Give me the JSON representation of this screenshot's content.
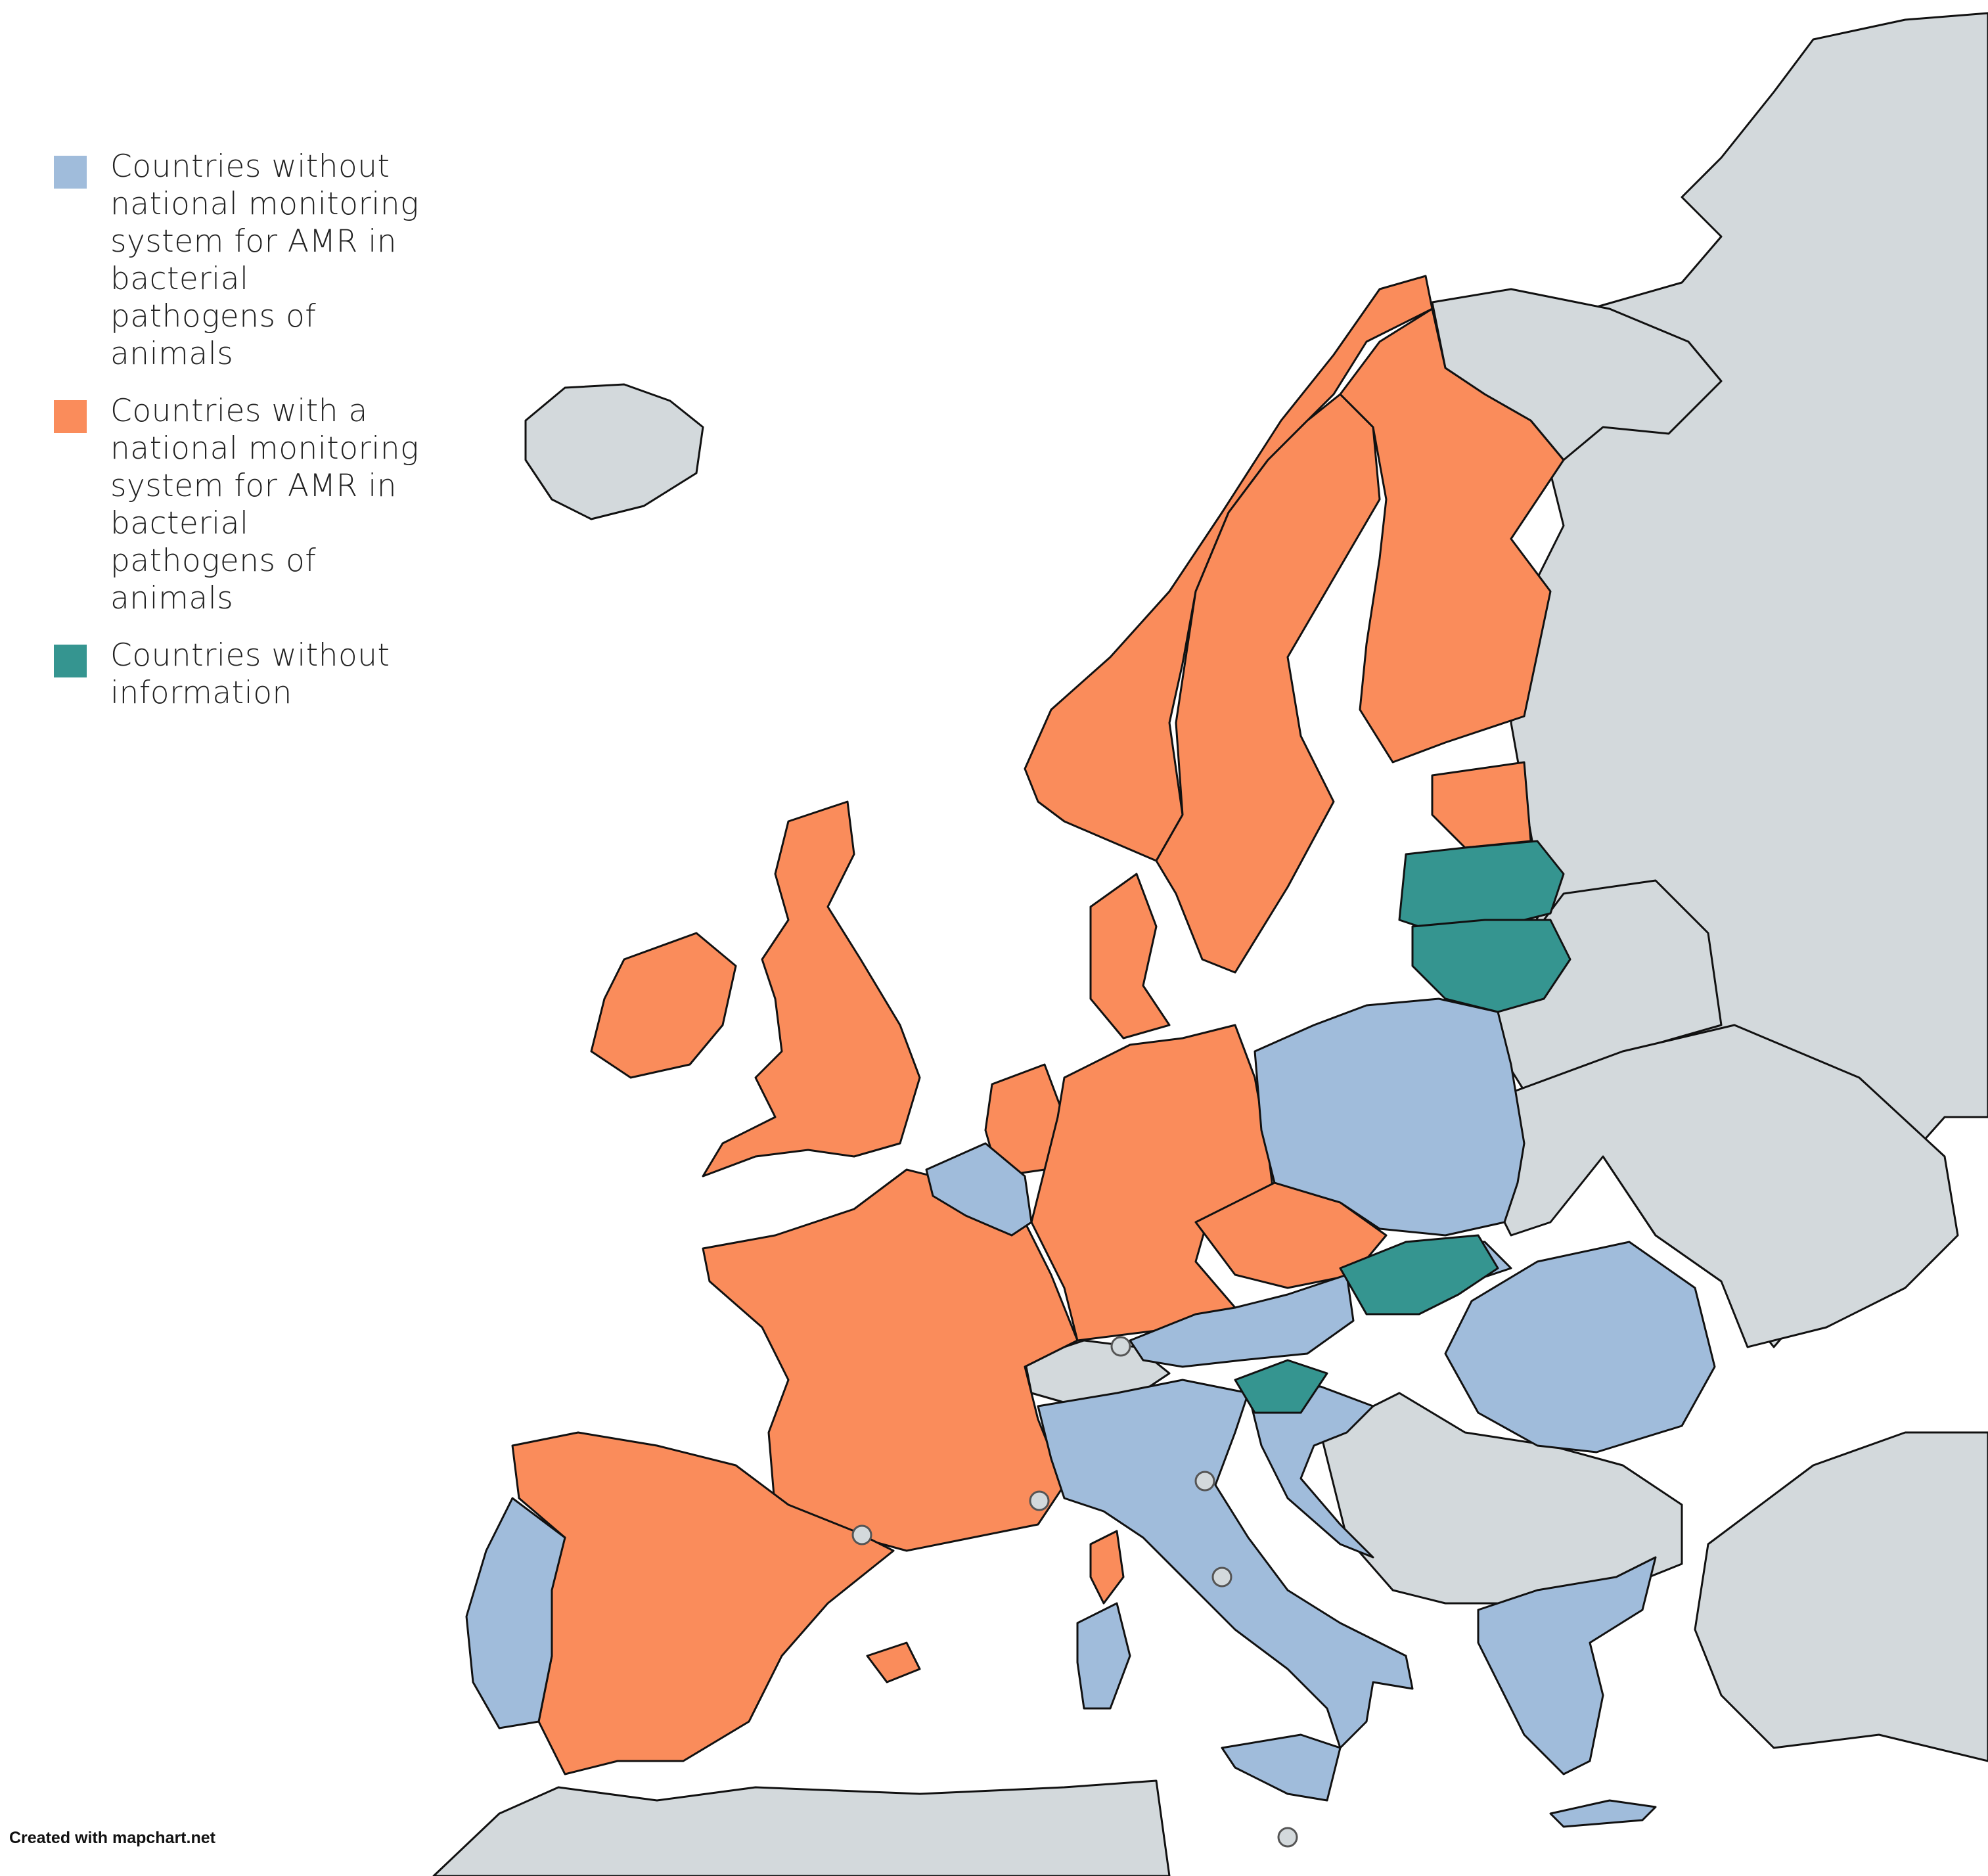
{
  "colors": {
    "no_system": "#a0bcdb",
    "with_system": "#fa8c5b",
    "no_info": "#359590",
    "other": "#d3d9dc",
    "sea": "#ffffff",
    "border": "#111111"
  },
  "legend": {
    "items": [
      {
        "key": "no_system",
        "label": "Countries without national monitoring system for AMR in bacterial pathogens of animals"
      },
      {
        "key": "with_system",
        "label": "Countries with a national monitoring system for AMR in bacterial pathogens of animals"
      },
      {
        "key": "no_info",
        "label": "Countries without information"
      }
    ]
  },
  "countries": {
    "with_system": [
      "Norway",
      "Sweden",
      "Finland",
      "Estonia",
      "Denmark",
      "United Kingdom",
      "Ireland",
      "Netherlands",
      "Germany",
      "France",
      "Spain",
      "Czech Republic"
    ],
    "no_system": [
      "Poland",
      "Belgium",
      "Austria",
      "Slovakia",
      "Romania",
      "Croatia",
      "Italy",
      "Portugal",
      "Greece"
    ],
    "no_info": [
      "Latvia",
      "Lithuania",
      "Hungary",
      "Slovenia"
    ]
  },
  "credit": "Created with mapchart.net"
}
